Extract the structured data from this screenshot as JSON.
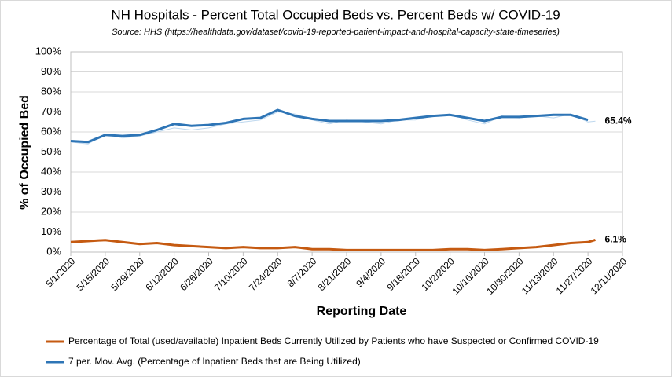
{
  "chart_data": {
    "type": "line",
    "title": "NH Hospitals - Percent Total Occupied Beds vs. Percent Beds w/ COVID-19",
    "subtitle": "Source:  HHS (https://healthdata.gov/dataset/covid-19-reported-patient-impact-and-hospital-capacity-state-timeseries)",
    "x_label": "Reporting Date",
    "y_label": "% of Occupied Bed",
    "x": [
      "5/1/2020",
      "5/8/2020",
      "5/15/2020",
      "5/22/2020",
      "5/29/2020",
      "6/5/2020",
      "6/12/2020",
      "6/19/2020",
      "6/26/2020",
      "7/3/2020",
      "7/10/2020",
      "7/17/2020",
      "7/24/2020",
      "7/31/2020",
      "8/7/2020",
      "8/14/2020",
      "8/21/2020",
      "8/28/2020",
      "9/4/2020",
      "9/11/2020",
      "9/18/2020",
      "9/25/2020",
      "10/2/2020",
      "10/9/2020",
      "10/16/2020",
      "10/23/2020",
      "10/30/2020",
      "11/6/2020",
      "11/13/2020",
      "11/20/2020",
      "11/27/2020",
      "11/30/2020"
    ],
    "series": [
      {
        "color": "#bdd7ee",
        "width": 1,
        "values": [
          55,
          54,
          59,
          57,
          58,
          60,
          62,
          61,
          62,
          64,
          65,
          66,
          70,
          69,
          66,
          64,
          66,
          65,
          64,
          66,
          66,
          68,
          69,
          66,
          64,
          68,
          67,
          68,
          67,
          69,
          65,
          65.4
        ],
        "value_labels": [
          null,
          null,
          null,
          null,
          null,
          null,
          null,
          null,
          null,
          null,
          null,
          null,
          null,
          null,
          null,
          null,
          null,
          null,
          null,
          null,
          null,
          null,
          null,
          null,
          null,
          null,
          null,
          null,
          null,
          null,
          null,
          "65.4%"
        ],
        "label_color": "#1f3864"
      },
      {
        "name": "Percentage of Total (used/available) Inpatient Beds Currently Utilized by Patients who have Suspected or Confirmed COVID-19",
        "color": "#c55a11",
        "width": 3,
        "values": [
          5,
          5.5,
          6,
          5,
          4,
          4.5,
          3.5,
          3,
          2.5,
          2,
          2.5,
          2,
          2,
          2.5,
          1.5,
          1.5,
          1,
          1,
          1,
          1,
          1,
          1,
          1.5,
          1.5,
          1,
          1.5,
          2,
          2.5,
          3.5,
          4.5,
          5,
          6.1
        ],
        "value_labels": [
          null,
          null,
          null,
          null,
          null,
          null,
          null,
          null,
          null,
          null,
          null,
          null,
          null,
          null,
          null,
          null,
          null,
          null,
          null,
          null,
          null,
          null,
          null,
          null,
          null,
          null,
          null,
          null,
          null,
          null,
          null,
          "6.1%"
        ],
        "label_color": "#843c0c"
      },
      {
        "name": "7 per. Mov. Avg. (Percentage of Inpatient Beds that are Being Utilized)",
        "color": "#2e75b6",
        "width": 3,
        "values": [
          55.5,
          55,
          58.5,
          58,
          58.5,
          61,
          64,
          63,
          63.5,
          64.5,
          66.5,
          67,
          71,
          68,
          66.5,
          65.5,
          65.5,
          65.5,
          65.5,
          66,
          67,
          68,
          68.5,
          67,
          65.5,
          67.5,
          67.5,
          68,
          68.5,
          68.5,
          66,
          null
        ]
      }
    ],
    "xlim": [
      "5/1/2020",
      "12/11/2020"
    ],
    "xticks": [
      "5/1/2020",
      "5/15/2020",
      "5/29/2020",
      "6/12/2020",
      "6/26/2020",
      "7/10/2020",
      "7/24/2020",
      "8/7/2020",
      "8/21/2020",
      "9/4/2020",
      "9/18/2020",
      "10/2/2020",
      "10/16/2020",
      "10/30/2020",
      "11/13/2020",
      "11/27/2020",
      "12/11/2020"
    ],
    "ylim": [
      0,
      100
    ],
    "yticks": [
      {
        "value": 0,
        "label": "0%"
      },
      {
        "value": 10,
        "label": "10%"
      },
      {
        "value": 20,
        "label": "20%"
      },
      {
        "value": 30,
        "label": "30%"
      },
      {
        "value": 40,
        "label": "40%"
      },
      {
        "value": 50,
        "label": "50%"
      },
      {
        "value": 60,
        "label": "60%"
      },
      {
        "value": 70,
        "label": "70%"
      },
      {
        "value": 80,
        "label": "80%"
      },
      {
        "value": 90,
        "label": "90%"
      },
      {
        "value": 100,
        "label": "100%"
      }
    ],
    "grid": true
  }
}
